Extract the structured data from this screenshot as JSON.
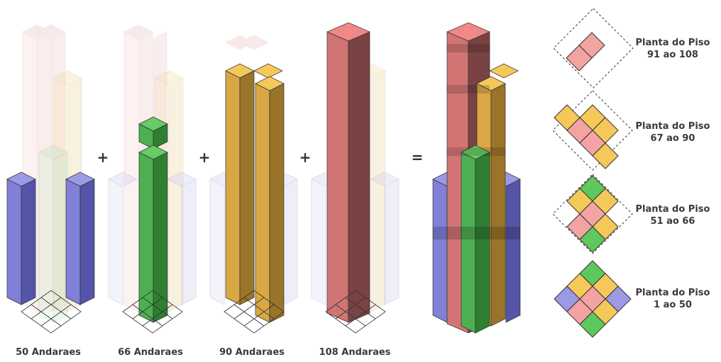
{
  "colors": {
    "blue": "#6f6fc8",
    "green": "#4caf50",
    "yellow": "#e0b04a",
    "red": "#d07474"
  },
  "towers": [
    {
      "floors_label": "50 Andaraes"
    },
    {
      "floors_label": "66 Andaraes"
    },
    {
      "floors_label": "90 Andaraes"
    },
    {
      "floors_label": "108 Andaraes"
    }
  ],
  "operators": [
    "+",
    "+",
    "+",
    "="
  ],
  "plans": [
    {
      "line1": "Planta do Piso",
      "line2": "91 ao 108"
    },
    {
      "line1": "Planta do Piso",
      "line2": "67 ao 90"
    },
    {
      "line1": "Planta do Piso",
      "line2": "51 ao 66"
    },
    {
      "line1": "Planta do Piso",
      "line2": "1 ao 50"
    }
  ]
}
